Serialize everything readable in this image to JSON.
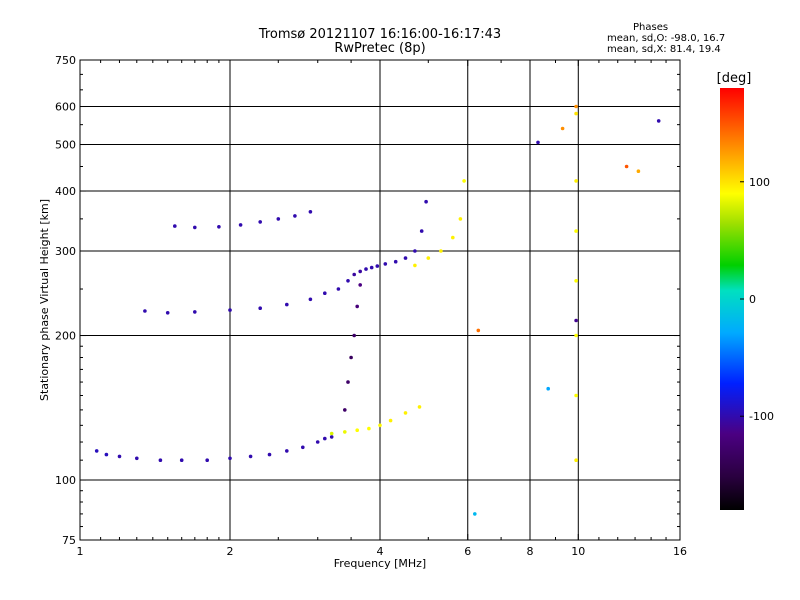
{
  "header": {
    "title": "Tromsø 20121107 16:16:00-16:17:43",
    "subtitle": "RwPretec (8p)"
  },
  "stats": {
    "heading": "Phases",
    "line_o": "mean, sd,O: -98.0, 16.7",
    "line_x": "mean, sd,X:  81.4, 19.4"
  },
  "colorbar": {
    "label": "[deg]",
    "ticks": [
      100,
      0,
      -100
    ],
    "range": [
      -180,
      180
    ]
  },
  "chart_data": {
    "type": "scatter",
    "xlabel": "Frequency [MHz]",
    "ylabel": "Stationary phase Virtual Height [km]",
    "xscale": "log",
    "yscale": "log",
    "xlim": [
      1,
      16
    ],
    "ylim": [
      75,
      750
    ],
    "xticks": [
      1,
      2,
      4,
      6,
      8,
      10,
      16
    ],
    "yticks": [
      75,
      100,
      200,
      300,
      400,
      500,
      600,
      750
    ],
    "grid_x": [
      2,
      4,
      6,
      8,
      10
    ],
    "grid_y": [
      100,
      200,
      300,
      400,
      500,
      600
    ],
    "color_variable": "phase [deg]",
    "series": [
      {
        "x": [
          1.08,
          1.13,
          1.2,
          1.3,
          1.45,
          1.6,
          1.8,
          2.0,
          2.2,
          2.4,
          2.6,
          2.8,
          3.0,
          3.1,
          3.2
        ],
        "y": [
          115,
          113,
          112,
          111,
          110,
          110,
          110,
          111,
          112,
          113,
          115,
          117,
          120,
          122,
          123
        ],
        "phase": [
          -95,
          -95,
          -100,
          -100,
          -100,
          -100,
          -100,
          -100,
          -100,
          -100,
          -100,
          -100,
          -100,
          -100,
          -100
        ]
      },
      {
        "x": [
          3.2,
          3.4,
          3.6,
          3.8,
          4.0,
          4.2,
          4.5,
          4.8
        ],
        "y": [
          125,
          126,
          127,
          128,
          130,
          133,
          138,
          142
        ],
        "phase": [
          80,
          85,
          90,
          90,
          92,
          95,
          95,
          95
        ]
      },
      {
        "x": [
          1.35,
          1.5,
          1.7,
          2.0,
          2.3,
          2.6,
          2.9,
          3.1
        ],
        "y": [
          225,
          223,
          224,
          226,
          228,
          232,
          238,
          245
        ],
        "phase": [
          -100,
          -100,
          -100,
          -100,
          -100,
          -100,
          -100,
          -100
        ]
      },
      {
        "x": [
          3.3,
          3.45,
          3.55,
          3.65,
          3.75,
          3.85,
          3.95,
          4.1,
          4.3,
          4.5,
          4.7,
          4.85,
          4.95
        ],
        "y": [
          250,
          260,
          268,
          272,
          275,
          277,
          279,
          282,
          285,
          290,
          300,
          330,
          380
        ],
        "phase": [
          -100,
          -100,
          -105,
          -105,
          -100,
          -100,
          -100,
          -100,
          -100,
          -100,
          -100,
          -100,
          -100
        ]
      },
      {
        "x": [
          1.55,
          1.7,
          1.9,
          2.1,
          2.3,
          2.5,
          2.7,
          2.9
        ],
        "y": [
          338,
          336,
          337,
          340,
          345,
          350,
          355,
          362
        ],
        "phase": [
          -100,
          -100,
          -100,
          -100,
          -100,
          -100,
          -100,
          -100
        ]
      },
      {
        "x": [
          3.4,
          3.45,
          3.5,
          3.55,
          3.6,
          3.65
        ],
        "y": [
          140,
          160,
          180,
          200,
          230,
          255
        ],
        "phase": [
          -130,
          -130,
          -135,
          -130,
          -120,
          -115
        ]
      },
      {
        "x": [
          4.7,
          5.0,
          5.3,
          5.6,
          5.8,
          5.9
        ],
        "y": [
          280,
          290,
          300,
          320,
          350,
          420
        ],
        "phase": [
          95,
          95,
          95,
          95,
          95,
          90
        ]
      },
      {
        "x": [
          9.9,
          9.9,
          9.9,
          9.9,
          9.9,
          9.9,
          9.9
        ],
        "y": [
          110,
          150,
          200,
          260,
          330,
          420,
          580
        ],
        "phase": [
          95,
          90,
          90,
          90,
          90,
          95,
          100
        ]
      },
      {
        "x": [
          6.2,
          6.3,
          8.3,
          8.7,
          9.3,
          12.5,
          13.2,
          14.5,
          9.9,
          9.9
        ],
        "y": [
          85,
          205,
          505,
          155,
          540,
          450,
          440,
          560,
          215,
          600
        ],
        "phase": [
          -20,
          140,
          -100,
          -30,
          130,
          150,
          120,
          -100,
          -110,
          130
        ]
      }
    ]
  }
}
